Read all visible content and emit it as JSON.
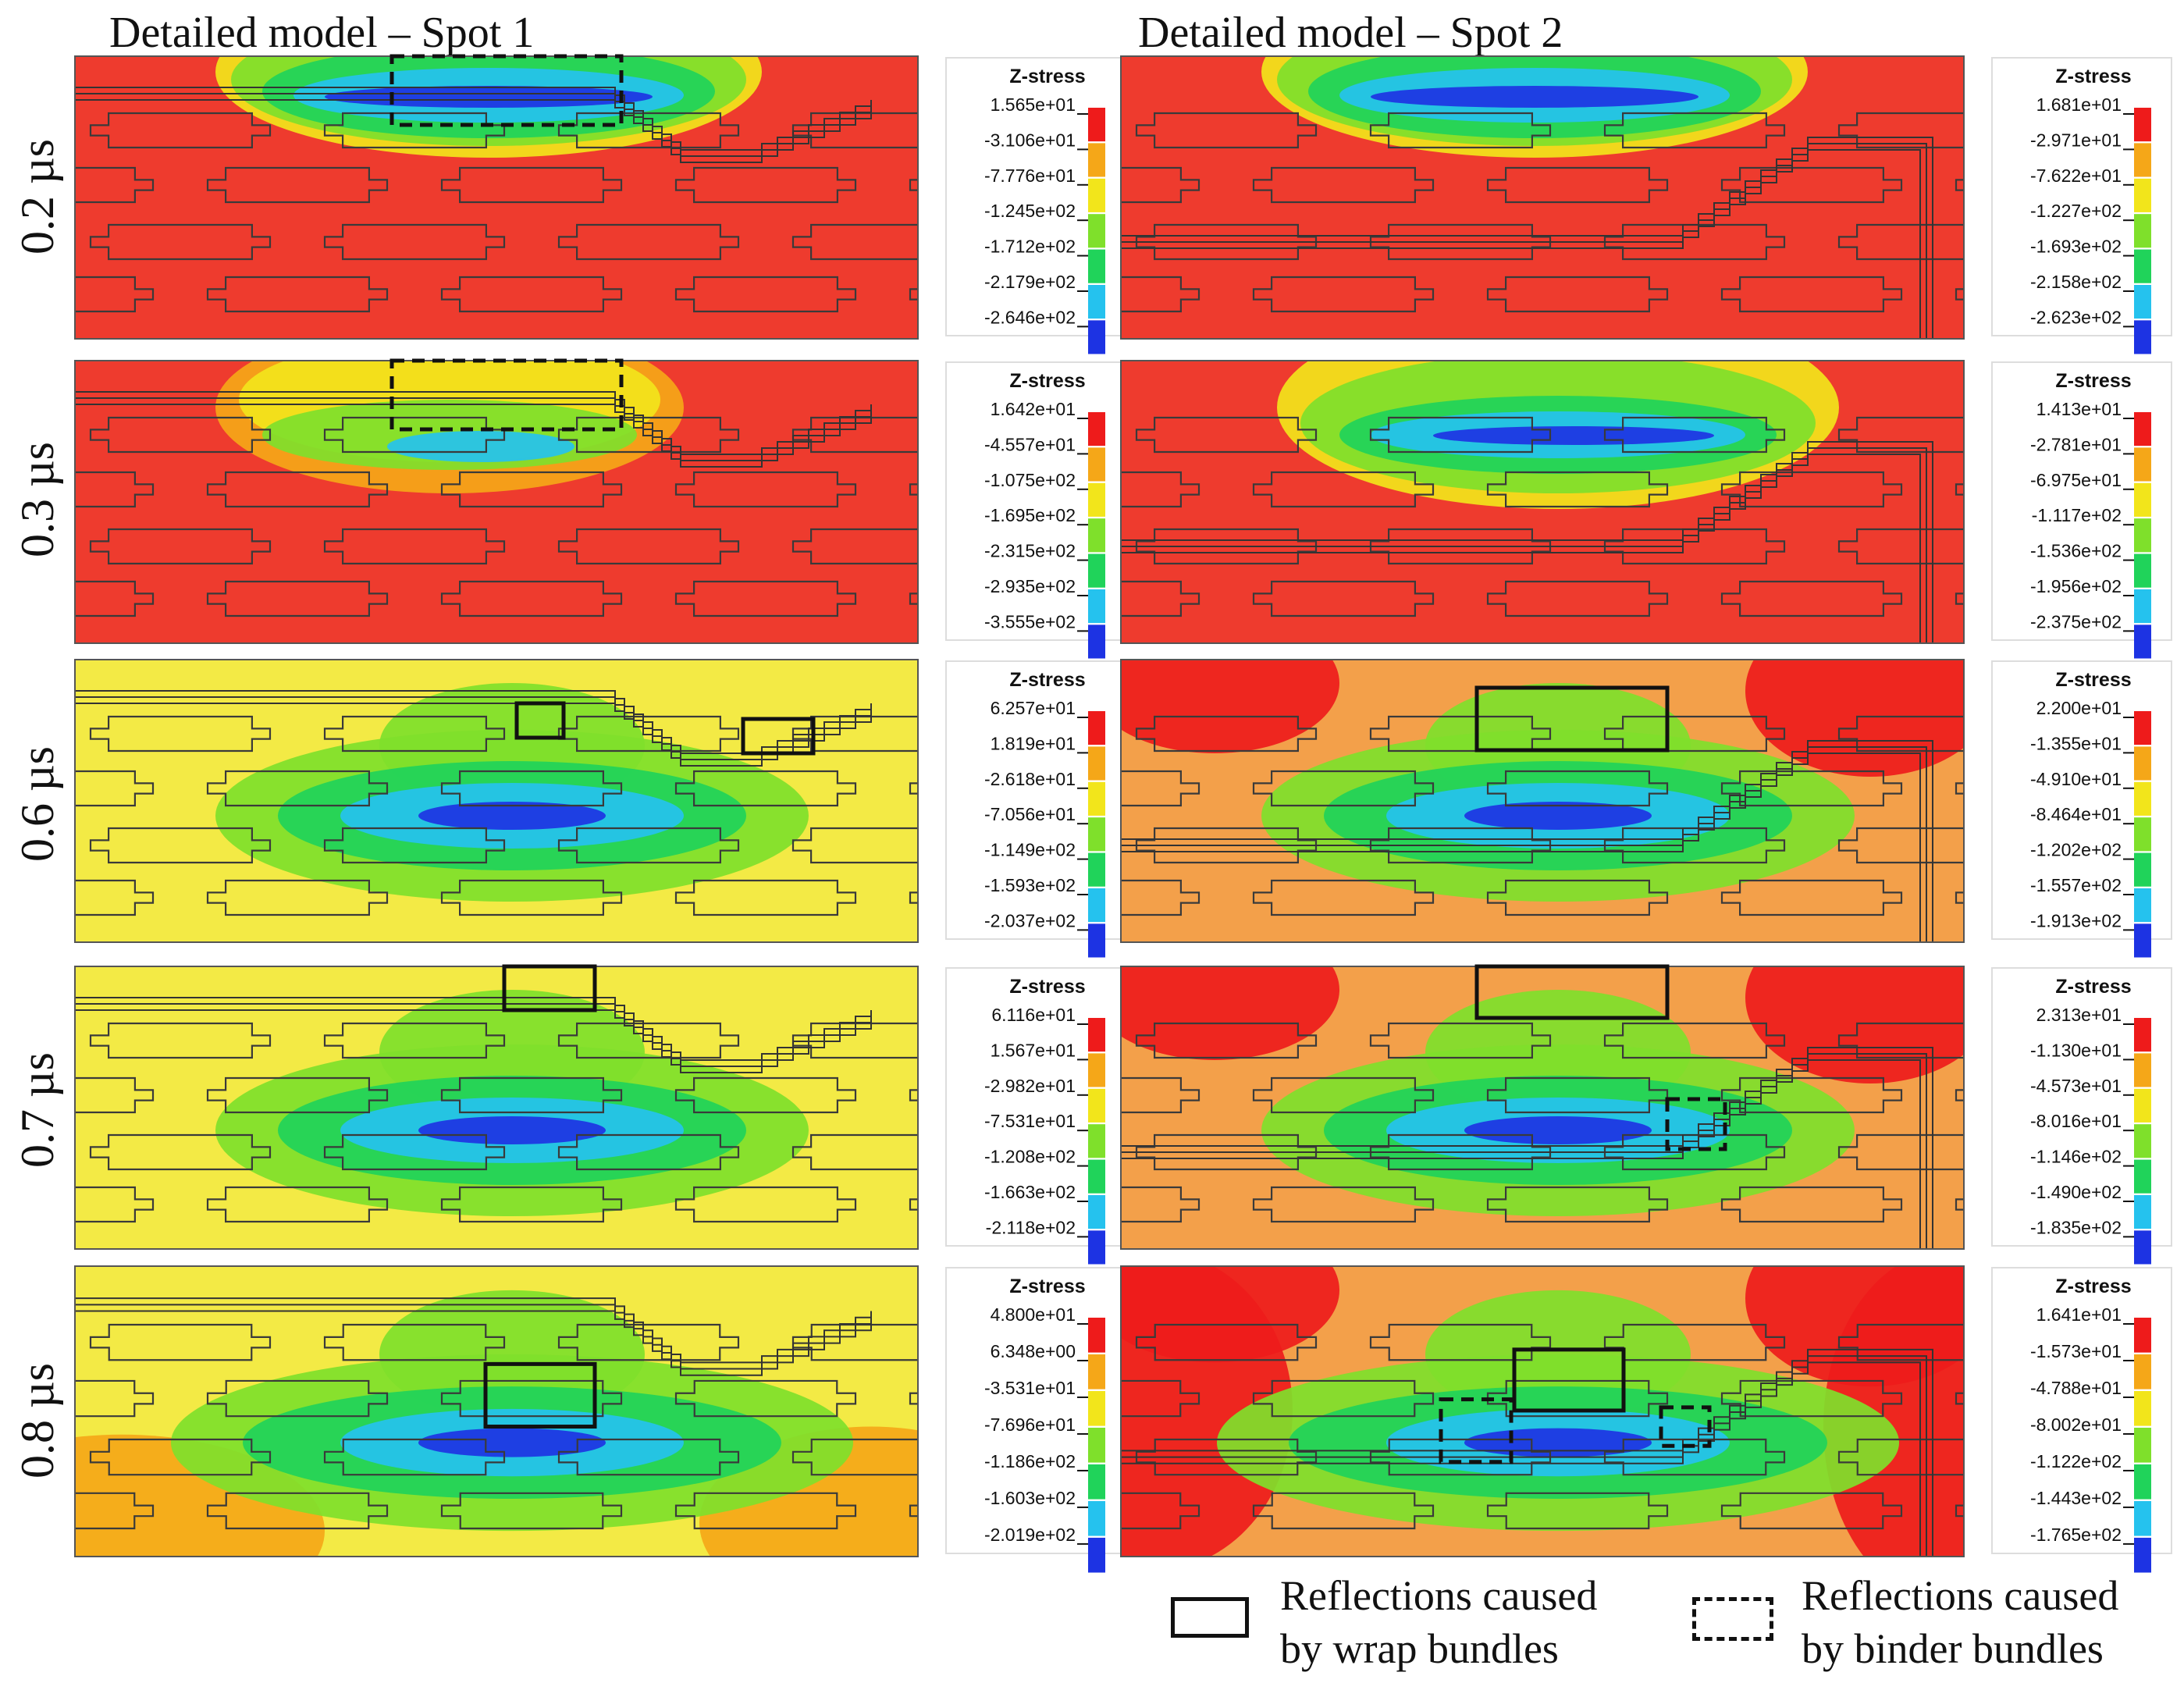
{
  "columns": [
    "Detailed model – Spot 1",
    "Detailed model – Spot 2"
  ],
  "rows": [
    "0.2 µs",
    "0.3 µs",
    "0.6 µs",
    "0.7 µs",
    "0.8 µs"
  ],
  "colorbar_title": "Z-stress",
  "colorbar_colors": [
    "#ee1b1b",
    "#f5a718",
    "#f2e51b",
    "#7fe02b",
    "#20d35a",
    "#25c2ee",
    "#1d33e3"
  ],
  "panels": [
    [
      {
        "ticks": [
          "1.565e+01",
          "-3.106e+01",
          "-7.776e+01",
          "-1.245e+02",
          "-1.712e+02",
          "-2.179e+02",
          "-2.646e+02"
        ],
        "background": "#ee3b2e",
        "boxes": [
          {
            "type": "binder"
          }
        ]
      },
      {
        "ticks": [
          "1.642e+01",
          "-4.557e+01",
          "-1.075e+02",
          "-1.695e+02",
          "-2.315e+02",
          "-2.935e+02",
          "-3.555e+02"
        ],
        "background": "#ee3b2e",
        "boxes": [
          {
            "type": "binder"
          }
        ]
      },
      {
        "ticks": [
          "6.257e+01",
          "1.819e+01",
          "-2.618e+01",
          "-7.056e+01",
          "-1.149e+02",
          "-1.593e+02",
          "-2.037e+02"
        ],
        "background": "#f3ea45",
        "boxes": [
          {
            "type": "wrap"
          },
          {
            "type": "wrap"
          }
        ]
      },
      {
        "ticks": [
          "6.116e+01",
          "1.567e+01",
          "-2.982e+01",
          "-7.531e+01",
          "-1.208e+02",
          "-1.663e+02",
          "-2.118e+02"
        ],
        "background": "#f3ea45",
        "boxes": [
          {
            "type": "wrap"
          }
        ]
      },
      {
        "ticks": [
          "4.800e+01",
          "6.348e+00",
          "-3.531e+01",
          "-7.696e+01",
          "-1.186e+02",
          "-1.603e+02",
          "-2.019e+02"
        ],
        "background": "#f3ea45",
        "boxes": [
          {
            "type": "wrap"
          }
        ]
      }
    ],
    [
      {
        "ticks": [
          "1.681e+01",
          "-2.971e+01",
          "-7.622e+01",
          "-1.227e+02",
          "-1.693e+02",
          "-2.158e+02",
          "-2.623e+02"
        ],
        "background": "#ee3b2e",
        "boxes": []
      },
      {
        "ticks": [
          "1.413e+01",
          "-2.781e+01",
          "-6.975e+01",
          "-1.117e+02",
          "-1.536e+02",
          "-1.956e+02",
          "-2.375e+02"
        ],
        "background": "#ee3b2e",
        "boxes": []
      },
      {
        "ticks": [
          "2.200e+01",
          "-1.355e+01",
          "-4.910e+01",
          "-8.464e+01",
          "-1.202e+02",
          "-1.557e+02",
          "-1.913e+02"
        ],
        "background": "#f3a04a",
        "boxes": [
          {
            "type": "wrap"
          }
        ]
      },
      {
        "ticks": [
          "2.313e+01",
          "-1.130e+01",
          "-4.573e+01",
          "-8.016e+01",
          "-1.146e+02",
          "-1.490e+02",
          "-1.835e+02"
        ],
        "background": "#f3a04a",
        "boxes": [
          {
            "type": "wrap"
          },
          {
            "type": "binder"
          }
        ]
      },
      {
        "ticks": [
          "1.641e+01",
          "-1.573e+01",
          "-4.788e+01",
          "-8.002e+01",
          "-1.122e+02",
          "-1.443e+02",
          "-1.765e+02"
        ],
        "background": "#f3a04a",
        "boxes": [
          {
            "type": "wrap"
          },
          {
            "type": "binder"
          },
          {
            "type": "binder"
          }
        ]
      }
    ]
  ],
  "legend": {
    "wrap_line1": "Reflections caused",
    "wrap_line2": "by wrap bundles",
    "binder_line1": "Reflections caused",
    "binder_line2": "by binder bundles"
  }
}
